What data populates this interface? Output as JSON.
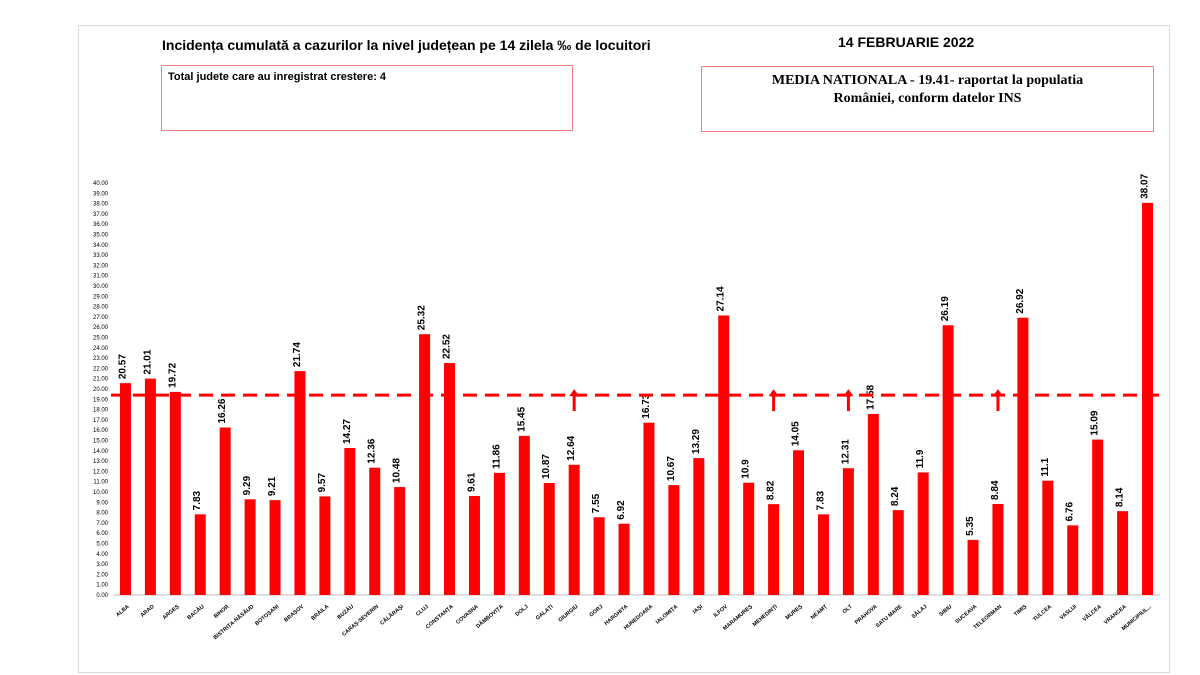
{
  "header": {
    "title": "Incidența cumulată a cazurilor la nivel județean pe 14 zilela ‰ de locuitori",
    "date": "14 FEBRUARIE 2022"
  },
  "info_box": {
    "text": "Total judete care au inregistrat crestere: 4"
  },
  "national_box": {
    "line1": "MEDIA NATIONALA  - 19.41-  raportat la populatia",
    "line2": "României, conform datelor INS"
  },
  "colors": {
    "bar": "#ff0000",
    "reference_line": "#ff0000",
    "arrow": "#ff0000",
    "box_border": "#f08080"
  },
  "chart_data": {
    "type": "bar",
    "categories": [
      "ALBA",
      "ARAD",
      "ARGEȘ",
      "BACĂU",
      "BIHOR",
      "BISTRIȚA-NĂSĂUD",
      "BOTOȘANI",
      "BRAȘOV",
      "BRĂILA",
      "BUZĂU",
      "CARAȘ-SEVERIN",
      "CĂLĂRAȘI",
      "CLUJ",
      "CONSTANȚA",
      "COVASNA",
      "DÂMBOVIȚA",
      "DOLJ",
      "GALAȚI",
      "GIURGIU",
      "GORJ",
      "HARGHITA",
      "HUNEDOARA",
      "IALOMIȚA",
      "IAȘI",
      "ILFOV",
      "MARAMUREȘ",
      "MEHEDINȚI",
      "MUREȘ",
      "NEAMȚ",
      "OLT",
      "PRAHOVA",
      "SATU MARE",
      "SĂLAJ",
      "SIBIU",
      "SUCEAVA",
      "TELEORMAN",
      "TIMIȘ",
      "TULCEA",
      "VASLUI",
      "VÂLCEA",
      "VRANCEA",
      "MUNICIPIUL..."
    ],
    "values": [
      20.57,
      21.01,
      19.72,
      7.83,
      16.26,
      9.29,
      9.21,
      21.74,
      9.57,
      14.27,
      12.36,
      10.48,
      25.32,
      22.52,
      9.61,
      11.86,
      15.45,
      10.87,
      12.64,
      7.55,
      6.92,
      16.73,
      10.67,
      13.29,
      27.14,
      10.9,
      8.82,
      14.05,
      7.83,
      12.31,
      17.58,
      8.24,
      11.9,
      26.19,
      5.35,
      8.84,
      26.92,
      11.1,
      6.76,
      15.09,
      8.14,
      38.07
    ],
    "value_labels": [
      "20.57",
      "21.01",
      "19.72",
      "7.83",
      "16.26",
      "9.29",
      "9.21",
      "21.74",
      "9.57",
      "14.27",
      "12.36",
      "10.48",
      "25.32",
      "22.52",
      "9.61",
      "11.86",
      "15.45",
      "10.87",
      "12.64",
      "7.55",
      "6.92",
      "16.73",
      "10.67",
      "13.29",
      "27.14",
      "10.9",
      "8.82",
      "14.05",
      "7.83",
      "12.31",
      "17.58",
      "8.24",
      "11.9",
      "26.19",
      "5.35",
      "8.84",
      "26.92",
      "11.1",
      "6.76",
      "15.09",
      "8.14",
      "38.07"
    ],
    "increase_arrows": [
      "GIURGIU",
      "MEHEDINȚI",
      "OLT",
      "TELEORMAN"
    ],
    "reference_value": 19.41,
    "ylim": [
      0,
      40
    ],
    "ytick_step": 1,
    "grid": false,
    "legend": "none"
  }
}
